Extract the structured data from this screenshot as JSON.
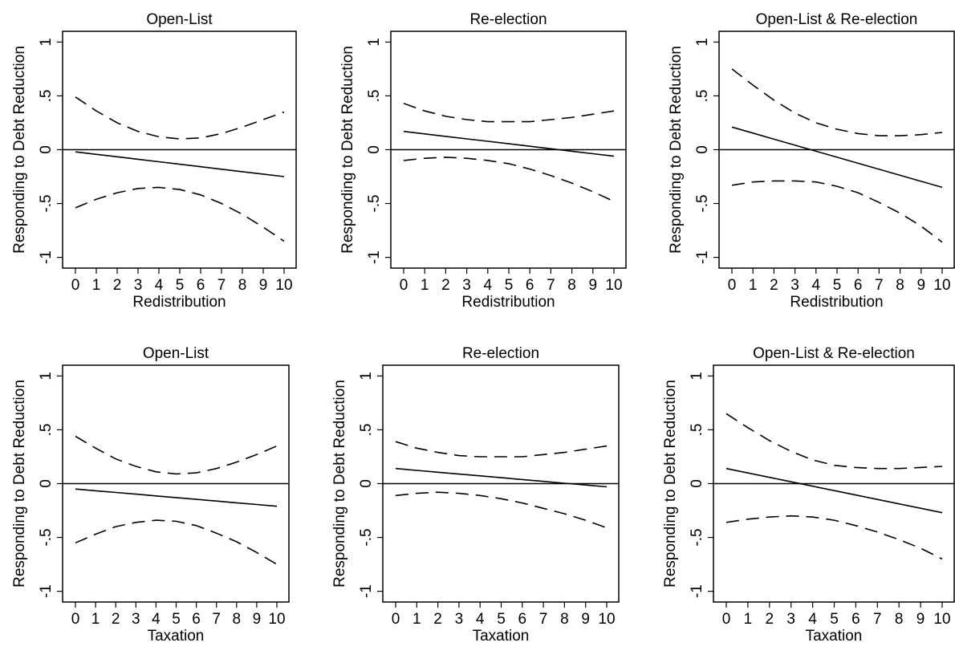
{
  "chart_data": [
    {
      "type": "line",
      "title": "Open-List",
      "xlabel": "Redistribution",
      "ylabel": "Responding to Debt Reduction",
      "x": [
        0,
        1,
        2,
        3,
        4,
        5,
        6,
        7,
        8,
        9,
        10
      ],
      "xticks": [
        "0",
        "1",
        "2",
        "3",
        "4",
        "5",
        "6",
        "7",
        "8",
        "9",
        "10"
      ],
      "ylim": [
        -1.1,
        1.1
      ],
      "yticks": [
        "-1",
        "-.5",
        "0",
        ".5",
        "1"
      ],
      "reference_line": 0,
      "series": [
        {
          "role": "estimate",
          "style": "solid",
          "values": [
            -0.02,
            -0.043,
            -0.066,
            -0.089,
            -0.112,
            -0.135,
            -0.158,
            -0.181,
            -0.204,
            -0.227,
            -0.25
          ]
        },
        {
          "role": "upper",
          "style": "dashed",
          "values": [
            0.49,
            0.36,
            0.25,
            0.17,
            0.12,
            0.1,
            0.11,
            0.15,
            0.21,
            0.28,
            0.35
          ]
        },
        {
          "role": "lower",
          "style": "dashed",
          "values": [
            -0.54,
            -0.46,
            -0.4,
            -0.36,
            -0.35,
            -0.37,
            -0.42,
            -0.5,
            -0.6,
            -0.72,
            -0.85
          ]
        }
      ]
    },
    {
      "type": "line",
      "title": "Re-election",
      "xlabel": "Redistribution",
      "ylabel": "Responding to Debt Reduction",
      "x": [
        0,
        1,
        2,
        3,
        4,
        5,
        6,
        7,
        8,
        9,
        10
      ],
      "xticks": [
        "0",
        "1",
        "2",
        "3",
        "4",
        "5",
        "6",
        "7",
        "8",
        "9",
        "10"
      ],
      "ylim": [
        -1.1,
        1.1
      ],
      "yticks": [
        "-1",
        "-.5",
        "0",
        ".5",
        "1"
      ],
      "reference_line": 0,
      "series": [
        {
          "role": "estimate",
          "style": "solid",
          "values": [
            0.17,
            0.147,
            0.124,
            0.101,
            0.078,
            0.055,
            0.032,
            0.009,
            -0.014,
            -0.037,
            -0.06
          ]
        },
        {
          "role": "upper",
          "style": "dashed",
          "values": [
            0.43,
            0.36,
            0.31,
            0.28,
            0.26,
            0.26,
            0.26,
            0.28,
            0.3,
            0.33,
            0.36
          ]
        },
        {
          "role": "lower",
          "style": "dashed",
          "values": [
            -0.1,
            -0.08,
            -0.07,
            -0.08,
            -0.1,
            -0.13,
            -0.18,
            -0.24,
            -0.31,
            -0.39,
            -0.48
          ]
        }
      ]
    },
    {
      "type": "line",
      "title": "Open-List & Re-election",
      "xlabel": "Redistribution",
      "ylabel": "Responding to Debt Reduction",
      "x": [
        0,
        1,
        2,
        3,
        4,
        5,
        6,
        7,
        8,
        9,
        10
      ],
      "xticks": [
        "0",
        "1",
        "2",
        "3",
        "4",
        "5",
        "6",
        "7",
        "8",
        "9",
        "10"
      ],
      "ylim": [
        -1.1,
        1.1
      ],
      "yticks": [
        "-1",
        "-.5",
        "0",
        ".5",
        "1"
      ],
      "reference_line": 0,
      "series": [
        {
          "role": "estimate",
          "style": "solid",
          "values": [
            0.21,
            0.154,
            0.098,
            0.042,
            -0.014,
            -0.07,
            -0.126,
            -0.182,
            -0.238,
            -0.294,
            -0.35
          ]
        },
        {
          "role": "upper",
          "style": "dashed",
          "values": [
            0.75,
            0.6,
            0.46,
            0.34,
            0.25,
            0.19,
            0.15,
            0.13,
            0.13,
            0.14,
            0.16
          ]
        },
        {
          "role": "lower",
          "style": "dashed",
          "values": [
            -0.33,
            -0.3,
            -0.29,
            -0.29,
            -0.3,
            -0.34,
            -0.4,
            -0.49,
            -0.59,
            -0.71,
            -0.86
          ]
        }
      ]
    },
    {
      "type": "line",
      "title": "Open-List",
      "xlabel": "Taxation",
      "ylabel": "Responding to Debt Reduction",
      "x": [
        0,
        1,
        2,
        3,
        4,
        5,
        6,
        7,
        8,
        9,
        10
      ],
      "xticks": [
        "0",
        "1",
        "2",
        "3",
        "4",
        "5",
        "6",
        "7",
        "8",
        "9",
        "10"
      ],
      "ylim": [
        -1.1,
        1.1
      ],
      "yticks": [
        "-1",
        "-.5",
        "0",
        ".5",
        "1"
      ],
      "reference_line": 0,
      "series": [
        {
          "role": "estimate",
          "style": "solid",
          "values": [
            -0.05,
            -0.066,
            -0.082,
            -0.098,
            -0.114,
            -0.13,
            -0.146,
            -0.162,
            -0.178,
            -0.194,
            -0.21
          ]
        },
        {
          "role": "upper",
          "style": "dashed",
          "values": [
            0.44,
            0.33,
            0.23,
            0.16,
            0.11,
            0.09,
            0.1,
            0.14,
            0.2,
            0.27,
            0.35
          ]
        },
        {
          "role": "lower",
          "style": "dashed",
          "values": [
            -0.55,
            -0.47,
            -0.4,
            -0.36,
            -0.34,
            -0.35,
            -0.39,
            -0.46,
            -0.54,
            -0.64,
            -0.75
          ]
        }
      ]
    },
    {
      "type": "line",
      "title": "Re-election",
      "xlabel": "Taxation",
      "ylabel": "Responding to Debt Reduction",
      "x": [
        0,
        1,
        2,
        3,
        4,
        5,
        6,
        7,
        8,
        9,
        10
      ],
      "xticks": [
        "0",
        "1",
        "2",
        "3",
        "4",
        "5",
        "6",
        "7",
        "8",
        "9",
        "10"
      ],
      "ylim": [
        -1.1,
        1.1
      ],
      "yticks": [
        "-1",
        "-.5",
        "0",
        ".5",
        "1"
      ],
      "reference_line": 0,
      "series": [
        {
          "role": "estimate",
          "style": "solid",
          "values": [
            0.14,
            0.123,
            0.106,
            0.089,
            0.072,
            0.055,
            0.038,
            0.021,
            0.004,
            -0.013,
            -0.03
          ]
        },
        {
          "role": "upper",
          "style": "dashed",
          "values": [
            0.39,
            0.33,
            0.29,
            0.26,
            0.25,
            0.25,
            0.25,
            0.27,
            0.29,
            0.32,
            0.35
          ]
        },
        {
          "role": "lower",
          "style": "dashed",
          "values": [
            -0.11,
            -0.09,
            -0.08,
            -0.09,
            -0.11,
            -0.14,
            -0.18,
            -0.23,
            -0.28,
            -0.34,
            -0.41
          ]
        }
      ]
    },
    {
      "type": "line",
      "title": "Open-List & Re-election",
      "xlabel": "Taxation",
      "ylabel": "Responding to Debt Reduction",
      "x": [
        0,
        1,
        2,
        3,
        4,
        5,
        6,
        7,
        8,
        9,
        10
      ],
      "xticks": [
        "0",
        "1",
        "2",
        "3",
        "4",
        "5",
        "6",
        "7",
        "8",
        "9",
        "10"
      ],
      "ylim": [
        -1.1,
        1.1
      ],
      "yticks": [
        "-1",
        "-.5",
        "0",
        ".5",
        "1"
      ],
      "reference_line": 0,
      "series": [
        {
          "role": "estimate",
          "style": "solid",
          "values": [
            0.14,
            0.099,
            0.058,
            0.017,
            -0.024,
            -0.065,
            -0.106,
            -0.147,
            -0.188,
            -0.229,
            -0.27
          ]
        },
        {
          "role": "upper",
          "style": "dashed",
          "values": [
            0.65,
            0.52,
            0.4,
            0.3,
            0.22,
            0.17,
            0.15,
            0.14,
            0.14,
            0.15,
            0.16
          ]
        },
        {
          "role": "lower",
          "style": "dashed",
          "values": [
            -0.36,
            -0.33,
            -0.31,
            -0.3,
            -0.31,
            -0.34,
            -0.39,
            -0.45,
            -0.52,
            -0.6,
            -0.7
          ]
        }
      ]
    }
  ]
}
